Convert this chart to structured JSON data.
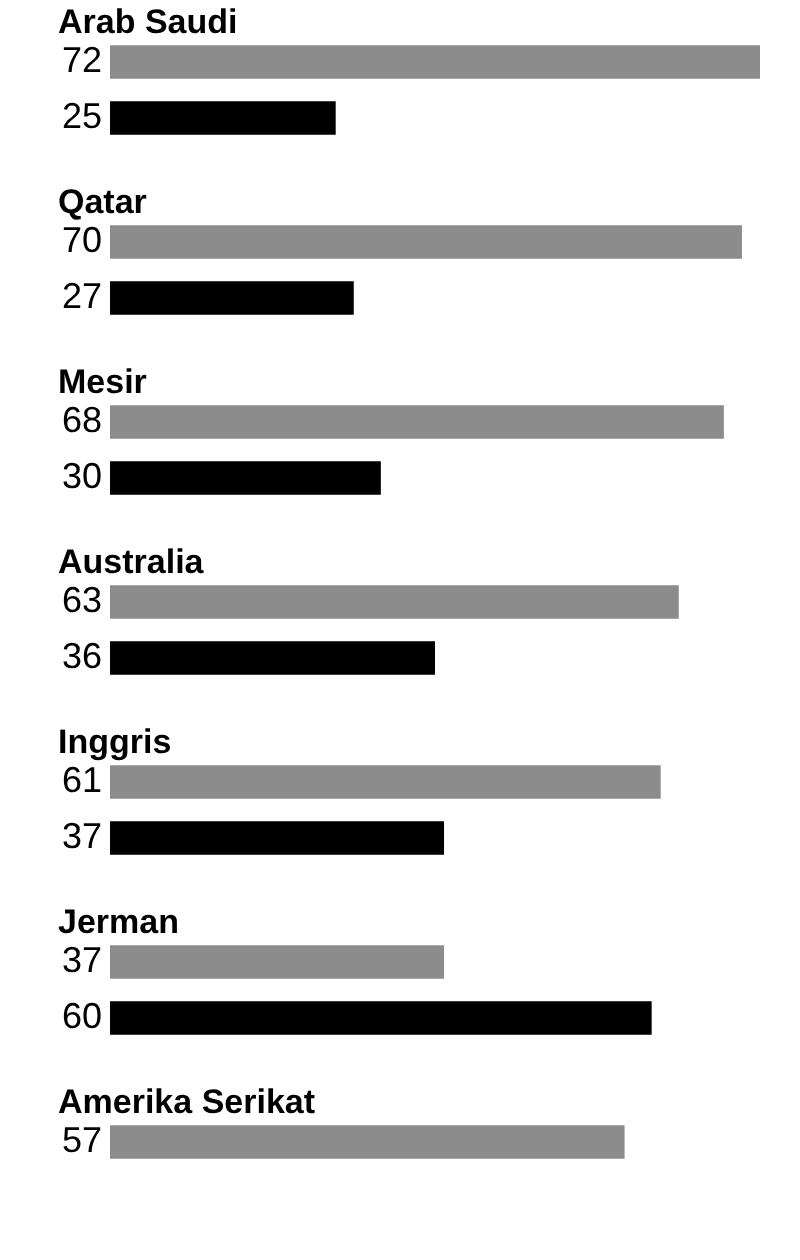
{
  "chart_data": {
    "type": "bar",
    "orientation": "horizontal",
    "categories": [
      "Arab Saudi",
      "Qatar",
      "Mesir",
      "Australia",
      "Inggris",
      "Jerman",
      "Amerika Serikat"
    ],
    "series": [
      {
        "color": "#8c8c8c",
        "values": [
          72,
          70,
          68,
          63,
          61,
          37,
          57
        ]
      },
      {
        "color": "#000000",
        "values": [
          25,
          27,
          30,
          36,
          37,
          60,
          null
        ]
      }
    ],
    "data_labels": true
  }
}
